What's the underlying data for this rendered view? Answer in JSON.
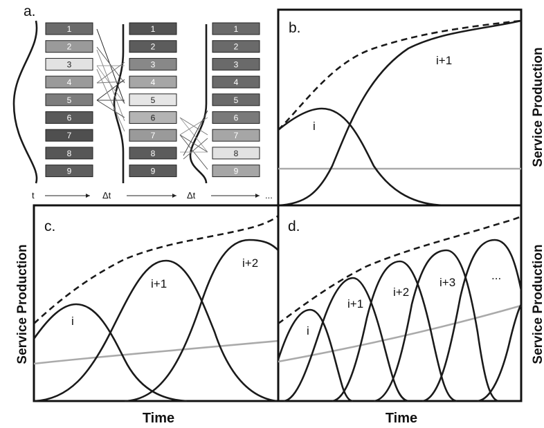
{
  "panels": {
    "a": {
      "label": "a.",
      "columns": [
        {
          "shades": [
            "#6b6b6b",
            "#9a9a9a",
            "#e2e2e2",
            "#9a9a9a",
            "#7d7d7d",
            "#5a5a5a",
            "#4f4f4f",
            "#575757",
            "#5e5e5e"
          ]
        },
        {
          "shades": [
            "#545454",
            "#5c5c5c",
            "#888888",
            "#a6a6a6",
            "#e6e6e6",
            "#b4b4b4",
            "#9a9a9a",
            "#5c5c5c",
            "#5c5c5c"
          ]
        },
        {
          "shades": [
            "#6a6a6a",
            "#6a6a6a",
            "#6a6a6a",
            "#6a6a6a",
            "#6a6a6a",
            "#7a7a7a",
            "#a6a6a6",
            "#e2e2e2",
            "#a6a6a6"
          ]
        }
      ],
      "box_labels": [
        "1",
        "2",
        "3",
        "4",
        "5",
        "6",
        "7",
        "8",
        "9"
      ],
      "time_axis": {
        "t": "t",
        "dt1": "Δt",
        "dt2": "Δt",
        "ellipsis": "..."
      }
    },
    "b": {
      "label": "b.",
      "ylabel": "Service Production",
      "curve_labels": [
        "i",
        "i+1"
      ]
    },
    "c": {
      "label": "c.",
      "ylabel": "Service Production",
      "xlabel": "Time",
      "curve_labels": [
        "i",
        "i+1",
        "i+2"
      ]
    },
    "d": {
      "label": "d.",
      "ylabel": "Service Production",
      "xlabel": "Time",
      "curve_labels": [
        "i",
        "i+1",
        "i+2",
        "i+3",
        "..."
      ]
    }
  },
  "colors": {
    "curve": "#1a1a1a",
    "baseline": "#aaaaaa",
    "frame": "#111111"
  }
}
